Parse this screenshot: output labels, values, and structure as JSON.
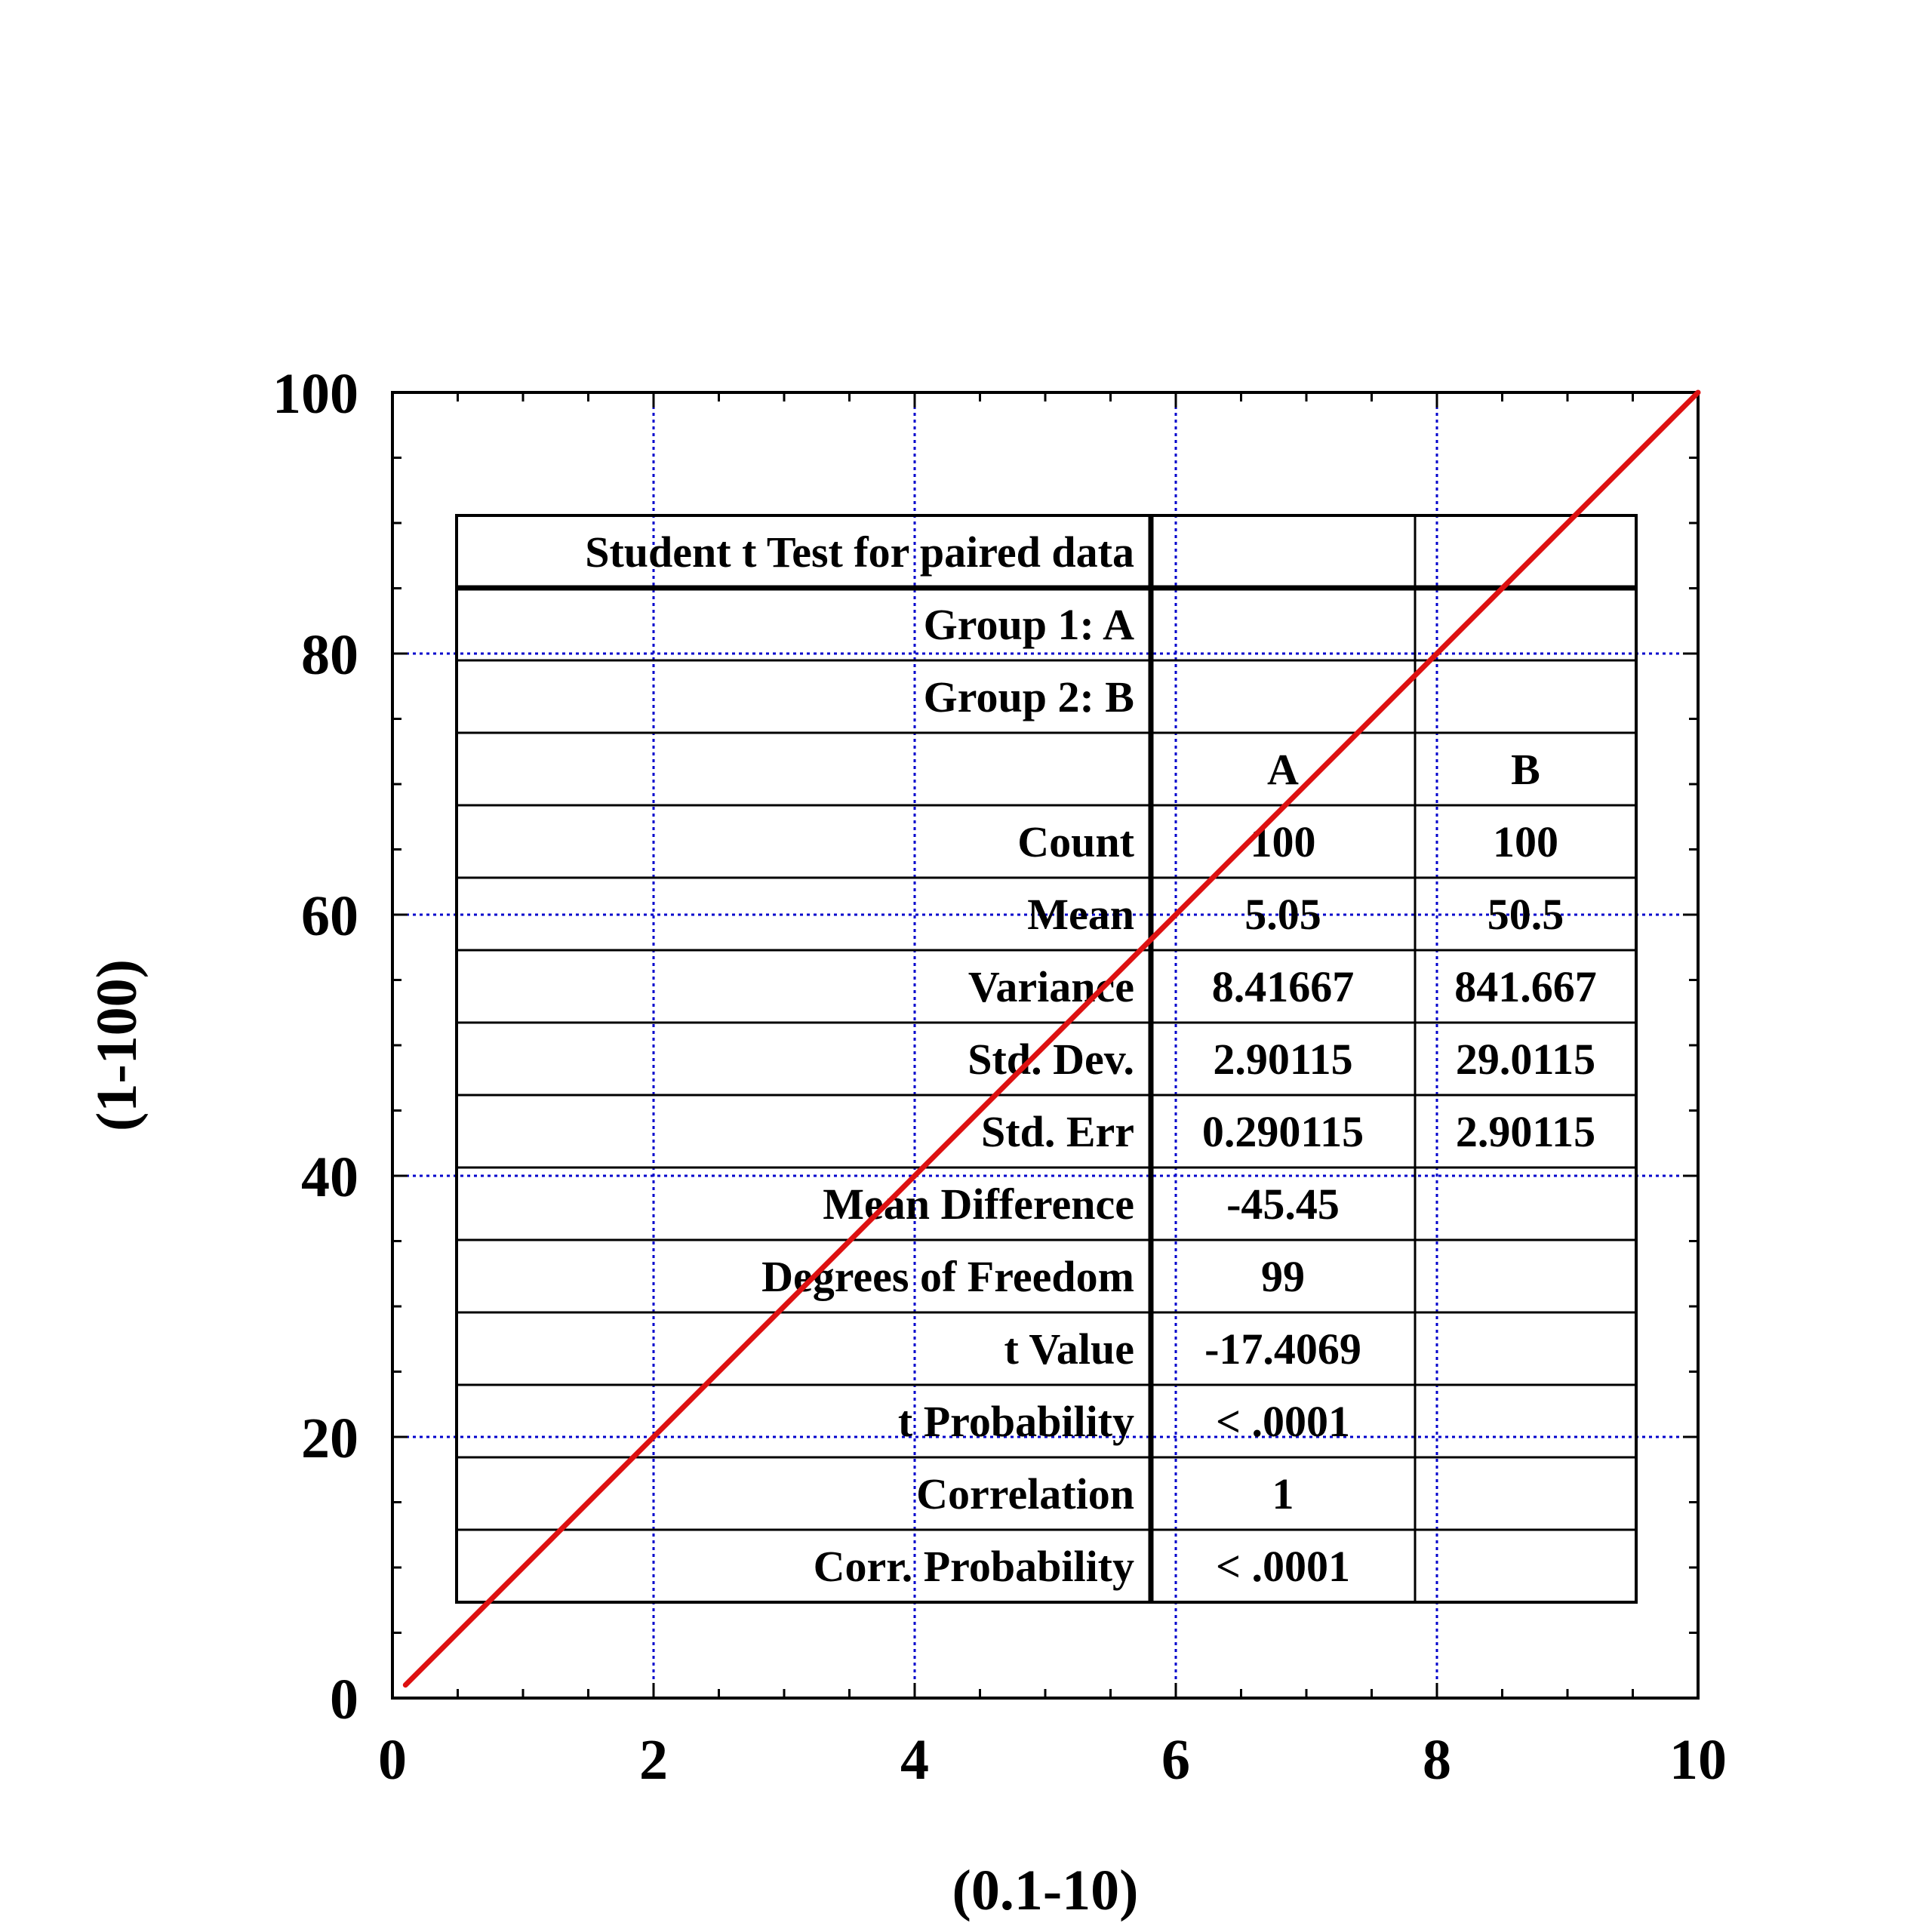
{
  "chart_data": {
    "type": "line",
    "xlabel": "(0.1-10)",
    "ylabel": "(1-100)",
    "xlim": [
      0,
      10
    ],
    "ylim": [
      0,
      100
    ],
    "x_ticks": [
      0,
      2,
      4,
      6,
      8,
      10
    ],
    "y_ticks": [
      0,
      20,
      40,
      60,
      80,
      100
    ],
    "x_minor_step": 0.5,
    "y_minor_step": 5,
    "grid": "dotted",
    "grid_color": "#0000cc",
    "series": [
      {
        "color": "#dd1111",
        "x": [
          0.1,
          10
        ],
        "y": [
          1,
          100
        ]
      }
    ],
    "stats_table": {
      "title": "Student t Test for paired data",
      "rows": [
        {
          "label": "Group 1:  A",
          "a": "",
          "b": ""
        },
        {
          "label": "Group 2:  B",
          "a": "",
          "b": ""
        },
        {
          "label": "",
          "a": "A",
          "b": "B"
        },
        {
          "label": "Count",
          "a": "100",
          "b": "100"
        },
        {
          "label": "Mean",
          "a": "5.05",
          "b": "50.5"
        },
        {
          "label": "Variance",
          "a": "8.41667",
          "b": "841.667"
        },
        {
          "label": "Std. Dev.",
          "a": "2.90115",
          "b": "29.0115"
        },
        {
          "label": "Std. Err",
          "a": "0.290115",
          "b": "2.90115"
        },
        {
          "label": "Mean Difference",
          "a": "-45.45",
          "b": ""
        },
        {
          "label": "Degrees of Freedom",
          "a": "99",
          "b": ""
        },
        {
          "label": "t Value",
          "a": "-17.4069",
          "b": ""
        },
        {
          "label": "t Probability",
          "a": "< .0001",
          "b": ""
        },
        {
          "label": "Correlation",
          "a": "1",
          "b": ""
        },
        {
          "label": "Corr. Probability",
          "a": "< .0001",
          "b": ""
        }
      ]
    }
  }
}
